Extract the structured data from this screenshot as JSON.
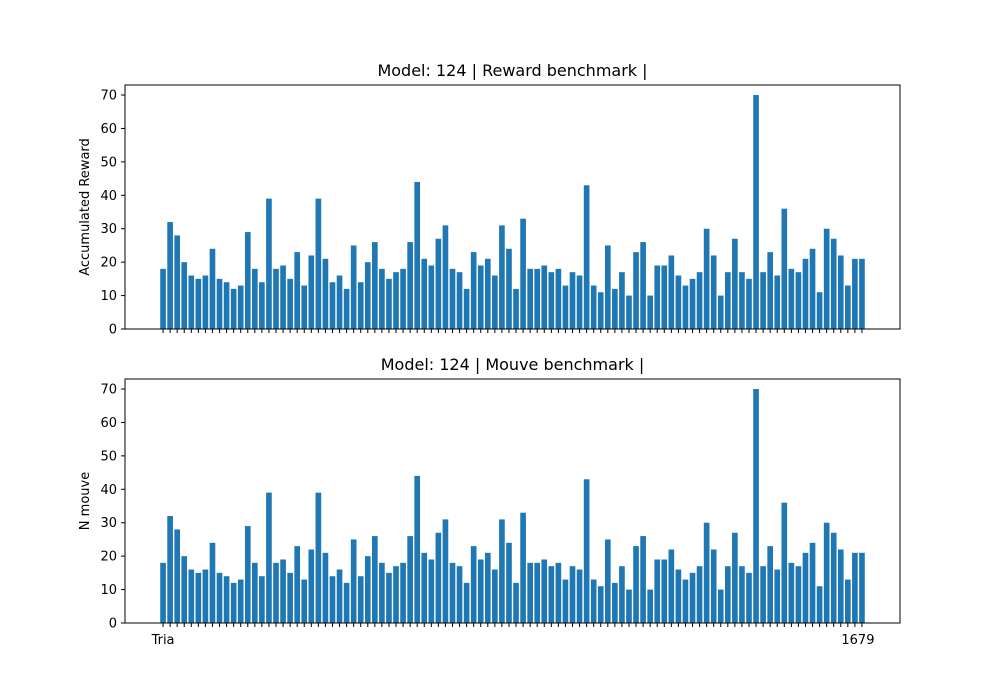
{
  "bar_color": "#1f77b4",
  "chart_data": [
    {
      "type": "bar",
      "title": "Model: 124 | Reward benchmark |",
      "xlabel": "",
      "ylabel": "Accumulated Reward",
      "ylim": [
        0,
        73
      ],
      "yticks": [
        0,
        10,
        20,
        30,
        40,
        50,
        60,
        70
      ],
      "show_xtick_labels": false,
      "values": [
        18,
        32,
        28,
        20,
        16,
        15,
        16,
        24,
        15,
        14,
        12,
        13,
        29,
        18,
        14,
        39,
        18,
        19,
        15,
        23,
        13,
        22,
        39,
        21,
        14,
        16,
        12,
        25,
        14,
        20,
        26,
        18,
        15,
        17,
        18,
        26,
        44,
        21,
        19,
        27,
        31,
        18,
        17,
        12,
        23,
        19,
        21,
        16,
        31,
        24,
        12,
        33,
        18,
        18,
        19,
        17,
        18,
        13,
        17,
        16,
        43,
        13,
        11,
        25,
        12,
        17,
        10,
        23,
        26,
        10,
        19,
        19,
        22,
        16,
        13,
        15,
        17,
        30,
        22,
        10,
        17,
        27,
        17,
        15,
        70,
        17,
        23,
        16,
        36,
        18,
        17,
        21,
        24,
        11,
        30,
        27,
        22,
        13,
        21,
        21
      ]
    },
    {
      "type": "bar",
      "title": "Model: 124 | Mouve benchmark |",
      "xlabel": "",
      "ylabel": "N mouve",
      "ylim": [
        0,
        73
      ],
      "yticks": [
        0,
        10,
        20,
        30,
        40,
        50,
        60,
        70
      ],
      "show_xtick_labels": true,
      "xtick_first": "Tria",
      "xtick_last": "1679",
      "values": [
        18,
        32,
        28,
        20,
        16,
        15,
        16,
        24,
        15,
        14,
        12,
        13,
        29,
        18,
        14,
        39,
        18,
        19,
        15,
        23,
        13,
        22,
        39,
        21,
        14,
        16,
        12,
        25,
        14,
        20,
        26,
        18,
        15,
        17,
        18,
        26,
        44,
        21,
        19,
        27,
        31,
        18,
        17,
        12,
        23,
        19,
        21,
        16,
        31,
        24,
        12,
        33,
        18,
        18,
        19,
        17,
        18,
        13,
        17,
        16,
        43,
        13,
        11,
        25,
        12,
        17,
        10,
        23,
        26,
        10,
        19,
        19,
        22,
        16,
        13,
        15,
        17,
        30,
        22,
        10,
        17,
        27,
        17,
        15,
        70,
        17,
        23,
        16,
        36,
        18,
        17,
        21,
        24,
        11,
        30,
        27,
        22,
        13,
        21,
        21
      ]
    }
  ]
}
